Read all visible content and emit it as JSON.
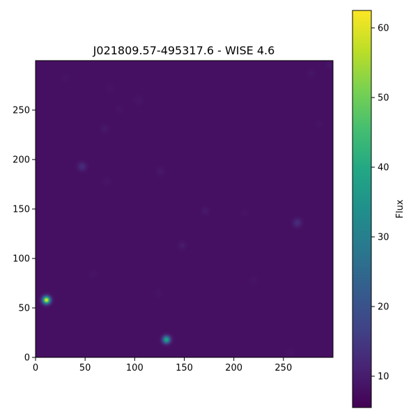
{
  "chart_data": {
    "type": "heatmap",
    "title": "J021809.57-495317.6 - WISE 4.6",
    "xlabel": "",
    "ylabel": "",
    "xlim": [
      0,
      300
    ],
    "ylim": [
      0,
      300
    ],
    "x_ticks": [
      0,
      50,
      100,
      150,
      200,
      250
    ],
    "y_ticks": [
      0,
      50,
      100,
      150,
      200,
      250
    ],
    "colormap": "viridis",
    "background_flux": 8,
    "colorbar": {
      "label": "Flux",
      "range": [
        5.5,
        62.5
      ],
      "ticks": [
        10,
        20,
        30,
        40,
        50,
        60
      ]
    },
    "sources": [
      {
        "x": 11,
        "y": 58,
        "peak": 62,
        "sigma": 2.6
      },
      {
        "x": 132,
        "y": 18,
        "peak": 40,
        "sigma": 2.6
      },
      {
        "x": 47,
        "y": 193,
        "peak": 13,
        "sigma": 3.0
      },
      {
        "x": 264,
        "y": 136,
        "peak": 13,
        "sigma": 3.0
      },
      {
        "x": 148,
        "y": 113,
        "peak": 10,
        "sigma": 2.8
      },
      {
        "x": 171,
        "y": 148,
        "peak": 9.5,
        "sigma": 2.8
      },
      {
        "x": 70,
        "y": 231,
        "peak": 9.5,
        "sigma": 3.0
      },
      {
        "x": 126,
        "y": 188,
        "peak": 9.5,
        "sigma": 3.0
      },
      {
        "x": 104,
        "y": 260,
        "peak": 9,
        "sigma": 3.0
      },
      {
        "x": 72,
        "y": 178,
        "peak": 9,
        "sigma": 2.8
      },
      {
        "x": 278,
        "y": 287,
        "peak": 9,
        "sigma": 2.8
      },
      {
        "x": 297,
        "y": 296,
        "peak": 9,
        "sigma": 2.8
      },
      {
        "x": 220,
        "y": 78,
        "peak": 8.8,
        "sigma": 2.8
      },
      {
        "x": 58,
        "y": 84,
        "peak": 8.8,
        "sigma": 2.8
      },
      {
        "x": 84,
        "y": 251,
        "peak": 8.7,
        "sigma": 2.8
      },
      {
        "x": 30,
        "y": 283,
        "peak": 8.7,
        "sigma": 2.8
      },
      {
        "x": 124,
        "y": 65,
        "peak": 8.7,
        "sigma": 2.8
      },
      {
        "x": 257,
        "y": 5,
        "peak": 8.7,
        "sigma": 2.8
      },
      {
        "x": 286,
        "y": 236,
        "peak": 8.6,
        "sigma": 2.8
      },
      {
        "x": 75,
        "y": 272,
        "peak": 8.6,
        "sigma": 2.8
      },
      {
        "x": 211,
        "y": 146,
        "peak": 8.6,
        "sigma": 2.8
      }
    ]
  }
}
